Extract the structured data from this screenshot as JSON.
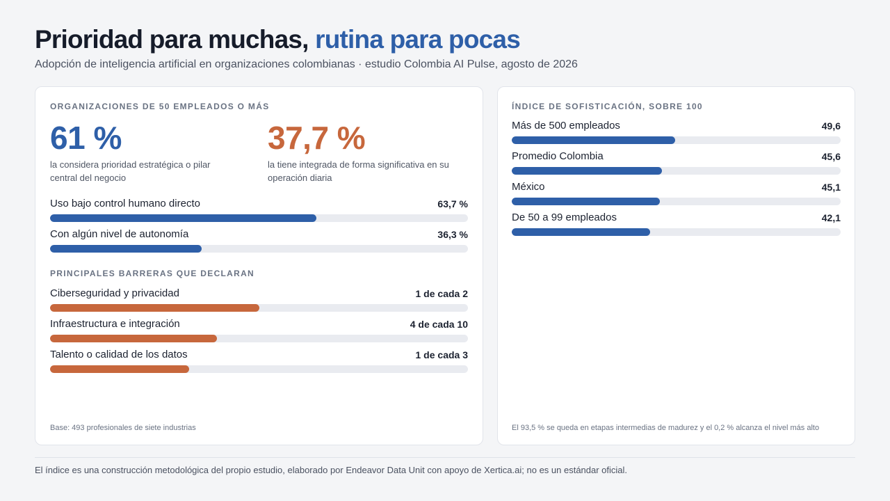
{
  "header": {
    "title_main": "Prioridad para muchas,",
    "title_accent": "rutina para pocas",
    "subtitle": "Adopción de inteligencia artificial en organizaciones colombianas · estudio Colombia AI Pulse, agosto de 2026"
  },
  "colors": {
    "blue": "#2e5fa8",
    "orange": "#c7673c",
    "track": "#e9ebf0"
  },
  "left_card": {
    "heading": "ORGANIZACIONES DE 50 EMPLEADOS O MÁS",
    "stats": [
      {
        "value": "61 %",
        "desc_line1": "la considera prioridad estratégica o pilar",
        "desc_line2": "central del negocio"
      },
      {
        "value": "37,7 %",
        "desc_line1": "la tiene integrada de forma significativa en su",
        "desc_line2": "operación diaria"
      }
    ],
    "barriers_heading": "PRINCIPALES BARRERAS QUE DECLARAN",
    "footnote": "Base: 493 profesionales de siete industrias"
  },
  "right_card": {
    "heading": "ÍNDICE DE SOFISTICACIÓN, SOBRE 100",
    "footnote": "El 93,5 % se queda en etapas intermedias de madurez y el 0,2 % alcanza el nivel más alto"
  },
  "footer": "El índice es una construcción metodológica del propio estudio, elaborado por Endeavor Data Unit con apoyo de Xertica.ai; no es un estándar oficial.",
  "chart_data": [
    {
      "type": "bar",
      "orientation": "horizontal",
      "categories": [
        "Uso bajo control humano directo",
        "Con algún nivel de autonomía"
      ],
      "values": [
        63.7,
        36.3
      ],
      "value_labels": [
        "63,7 %",
        "36,3 %"
      ],
      "xlim": [
        0,
        100
      ],
      "color": "#2e5fa8"
    },
    {
      "type": "bar",
      "orientation": "horizontal",
      "title": "PRINCIPALES BARRERAS QUE DECLARAN",
      "categories": [
        "Ciberseguridad y privacidad",
        "Infraestructura e integración",
        "Talento o calidad de los datos"
      ],
      "values": [
        0.5,
        0.4,
        0.3333
      ],
      "value_labels": [
        "1 de cada 2",
        "4 de cada 10",
        "1 de cada 3"
      ],
      "xlim": [
        0,
        1
      ],
      "color": "#c7673c"
    },
    {
      "type": "bar",
      "orientation": "horizontal",
      "title": "ÍNDICE DE SOFISTICACIÓN, SOBRE 100",
      "categories": [
        "Más de 500 empleados",
        "Promedio Colombia",
        "México",
        "De 50 a 99 empleados"
      ],
      "values": [
        49.6,
        45.6,
        45.1,
        42.1
      ],
      "value_labels": [
        "49,6",
        "45,6",
        "45,1",
        "42,1"
      ],
      "xlim": [
        0,
        100
      ],
      "color": "#2e5fa8"
    }
  ]
}
